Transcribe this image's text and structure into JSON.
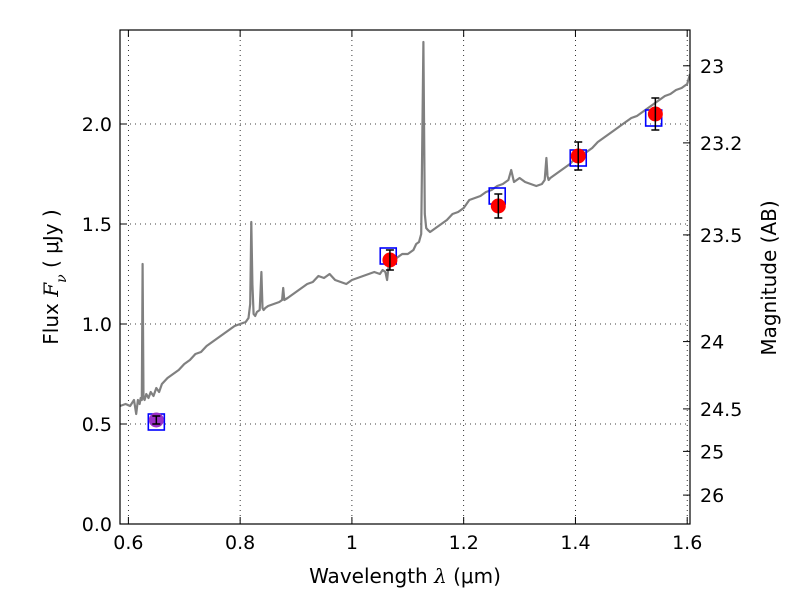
{
  "chart_data": {
    "type": "line",
    "xlabel": {
      "prefix": "Wavelength",
      "symbol": "λ",
      "unit": "(μm)"
    },
    "ylabel": {
      "prefix": "Flux",
      "symbol": "F",
      "subscript": "ν",
      "unit": "( μJy )"
    },
    "y2label": "Magnitude (AB)",
    "xlim": [
      0.585,
      1.605
    ],
    "ylim": [
      0.0,
      2.47
    ],
    "xticks": [
      0.6,
      0.8,
      1.0,
      1.2,
      1.4,
      1.6
    ],
    "xtick_labels": [
      "0.6",
      "0.8",
      "1",
      "1.2",
      "1.4",
      "1.6"
    ],
    "yticks": [
      0.0,
      0.5,
      1.0,
      1.5,
      2.0
    ],
    "ytick_labels": [
      "0.0",
      "0.5",
      "1.0",
      "1.5",
      "2.0"
    ],
    "y2ticks": [
      23,
      23.2,
      23.5,
      24,
      24.5,
      25,
      26
    ],
    "y2tick_labels": [
      "23",
      "23.2",
      "23.5",
      "24",
      "24.5",
      "25",
      "26"
    ],
    "grid": true,
    "series": [
      {
        "kind": "spectrum",
        "color": "#808080",
        "x": [
          0.585,
          0.595,
          0.603,
          0.61,
          0.614,
          0.617,
          0.62,
          0.622,
          0.624,
          0.6255,
          0.627,
          0.629,
          0.632,
          0.636,
          0.64,
          0.645,
          0.65,
          0.655,
          0.66,
          0.67,
          0.68,
          0.69,
          0.7,
          0.71,
          0.72,
          0.73,
          0.74,
          0.75,
          0.76,
          0.77,
          0.78,
          0.79,
          0.8,
          0.81,
          0.815,
          0.818,
          0.82,
          0.822,
          0.824,
          0.827,
          0.83,
          0.835,
          0.838,
          0.84,
          0.842,
          0.845,
          0.85,
          0.86,
          0.87,
          0.875,
          0.877,
          0.879,
          0.885,
          0.89,
          0.9,
          0.91,
          0.92,
          0.93,
          0.94,
          0.95,
          0.96,
          0.97,
          0.98,
          0.99,
          1.0,
          1.01,
          1.02,
          1.03,
          1.04,
          1.05,
          1.055,
          1.06,
          1.063,
          1.066,
          1.07,
          1.08,
          1.09,
          1.1,
          1.11,
          1.115,
          1.12,
          1.124,
          1.128,
          1.1305,
          1.133,
          1.136,
          1.14,
          1.15,
          1.16,
          1.17,
          1.18,
          1.19,
          1.2,
          1.21,
          1.22,
          1.23,
          1.24,
          1.25,
          1.26,
          1.27,
          1.28,
          1.285,
          1.29,
          1.3,
          1.31,
          1.32,
          1.33,
          1.34,
          1.345,
          1.348,
          1.35,
          1.352,
          1.355,
          1.36,
          1.37,
          1.38,
          1.39,
          1.4,
          1.41,
          1.42,
          1.43,
          1.44,
          1.45,
          1.46,
          1.47,
          1.48,
          1.49,
          1.5,
          1.51,
          1.52,
          1.53,
          1.54,
          1.55,
          1.56,
          1.57,
          1.58,
          1.59,
          1.6,
          1.605
        ],
        "y": [
          0.59,
          0.6,
          0.59,
          0.62,
          0.55,
          0.62,
          0.6,
          0.63,
          0.62,
          1.3,
          0.63,
          0.62,
          0.65,
          0.63,
          0.66,
          0.64,
          0.68,
          0.66,
          0.7,
          0.73,
          0.75,
          0.77,
          0.8,
          0.82,
          0.85,
          0.86,
          0.89,
          0.91,
          0.93,
          0.95,
          0.97,
          0.99,
          1.0,
          1.01,
          1.03,
          1.1,
          1.51,
          1.2,
          1.05,
          1.04,
          1.06,
          1.07,
          1.26,
          1.08,
          1.07,
          1.08,
          1.09,
          1.1,
          1.11,
          1.12,
          1.18,
          1.12,
          1.13,
          1.14,
          1.16,
          1.18,
          1.2,
          1.21,
          1.24,
          1.23,
          1.25,
          1.22,
          1.21,
          1.2,
          1.22,
          1.23,
          1.24,
          1.25,
          1.26,
          1.25,
          1.27,
          1.26,
          1.22,
          1.3,
          1.32,
          1.33,
          1.35,
          1.35,
          1.37,
          1.4,
          1.41,
          1.45,
          2.41,
          1.55,
          1.48,
          1.47,
          1.46,
          1.48,
          1.5,
          1.52,
          1.55,
          1.56,
          1.58,
          1.62,
          1.63,
          1.64,
          1.66,
          1.67,
          1.69,
          1.7,
          1.72,
          1.77,
          1.71,
          1.73,
          1.71,
          1.7,
          1.69,
          1.7,
          1.72,
          1.83,
          1.74,
          1.72,
          1.73,
          1.74,
          1.76,
          1.78,
          1.8,
          1.83,
          1.85,
          1.86,
          1.88,
          1.91,
          1.93,
          1.95,
          1.97,
          1.99,
          2.01,
          2.03,
          2.04,
          2.06,
          2.08,
          2.1,
          2.12,
          2.14,
          2.15,
          2.17,
          2.18,
          2.2,
          2.25
        ]
      },
      {
        "kind": "model-photometry",
        "marker": "open-square",
        "color": "#0000ff",
        "x": [
          0.65,
          1.065,
          1.26,
          1.405,
          1.54
        ],
        "y": [
          0.51,
          1.34,
          1.64,
          1.83,
          2.03
        ]
      },
      {
        "kind": "observed-photometry",
        "marker": "filled-circle",
        "color": "#ff0000",
        "fill_colors": [
          "#9b30c8",
          "#ff0000",
          "#ff0000",
          "#ff0000",
          "#ff0000"
        ],
        "x": [
          0.65,
          1.068,
          1.262,
          1.405,
          1.543
        ],
        "y": [
          0.52,
          1.32,
          1.59,
          1.84,
          2.05
        ],
        "yerr": [
          0.02,
          0.05,
          0.06,
          0.07,
          0.08
        ]
      }
    ]
  }
}
